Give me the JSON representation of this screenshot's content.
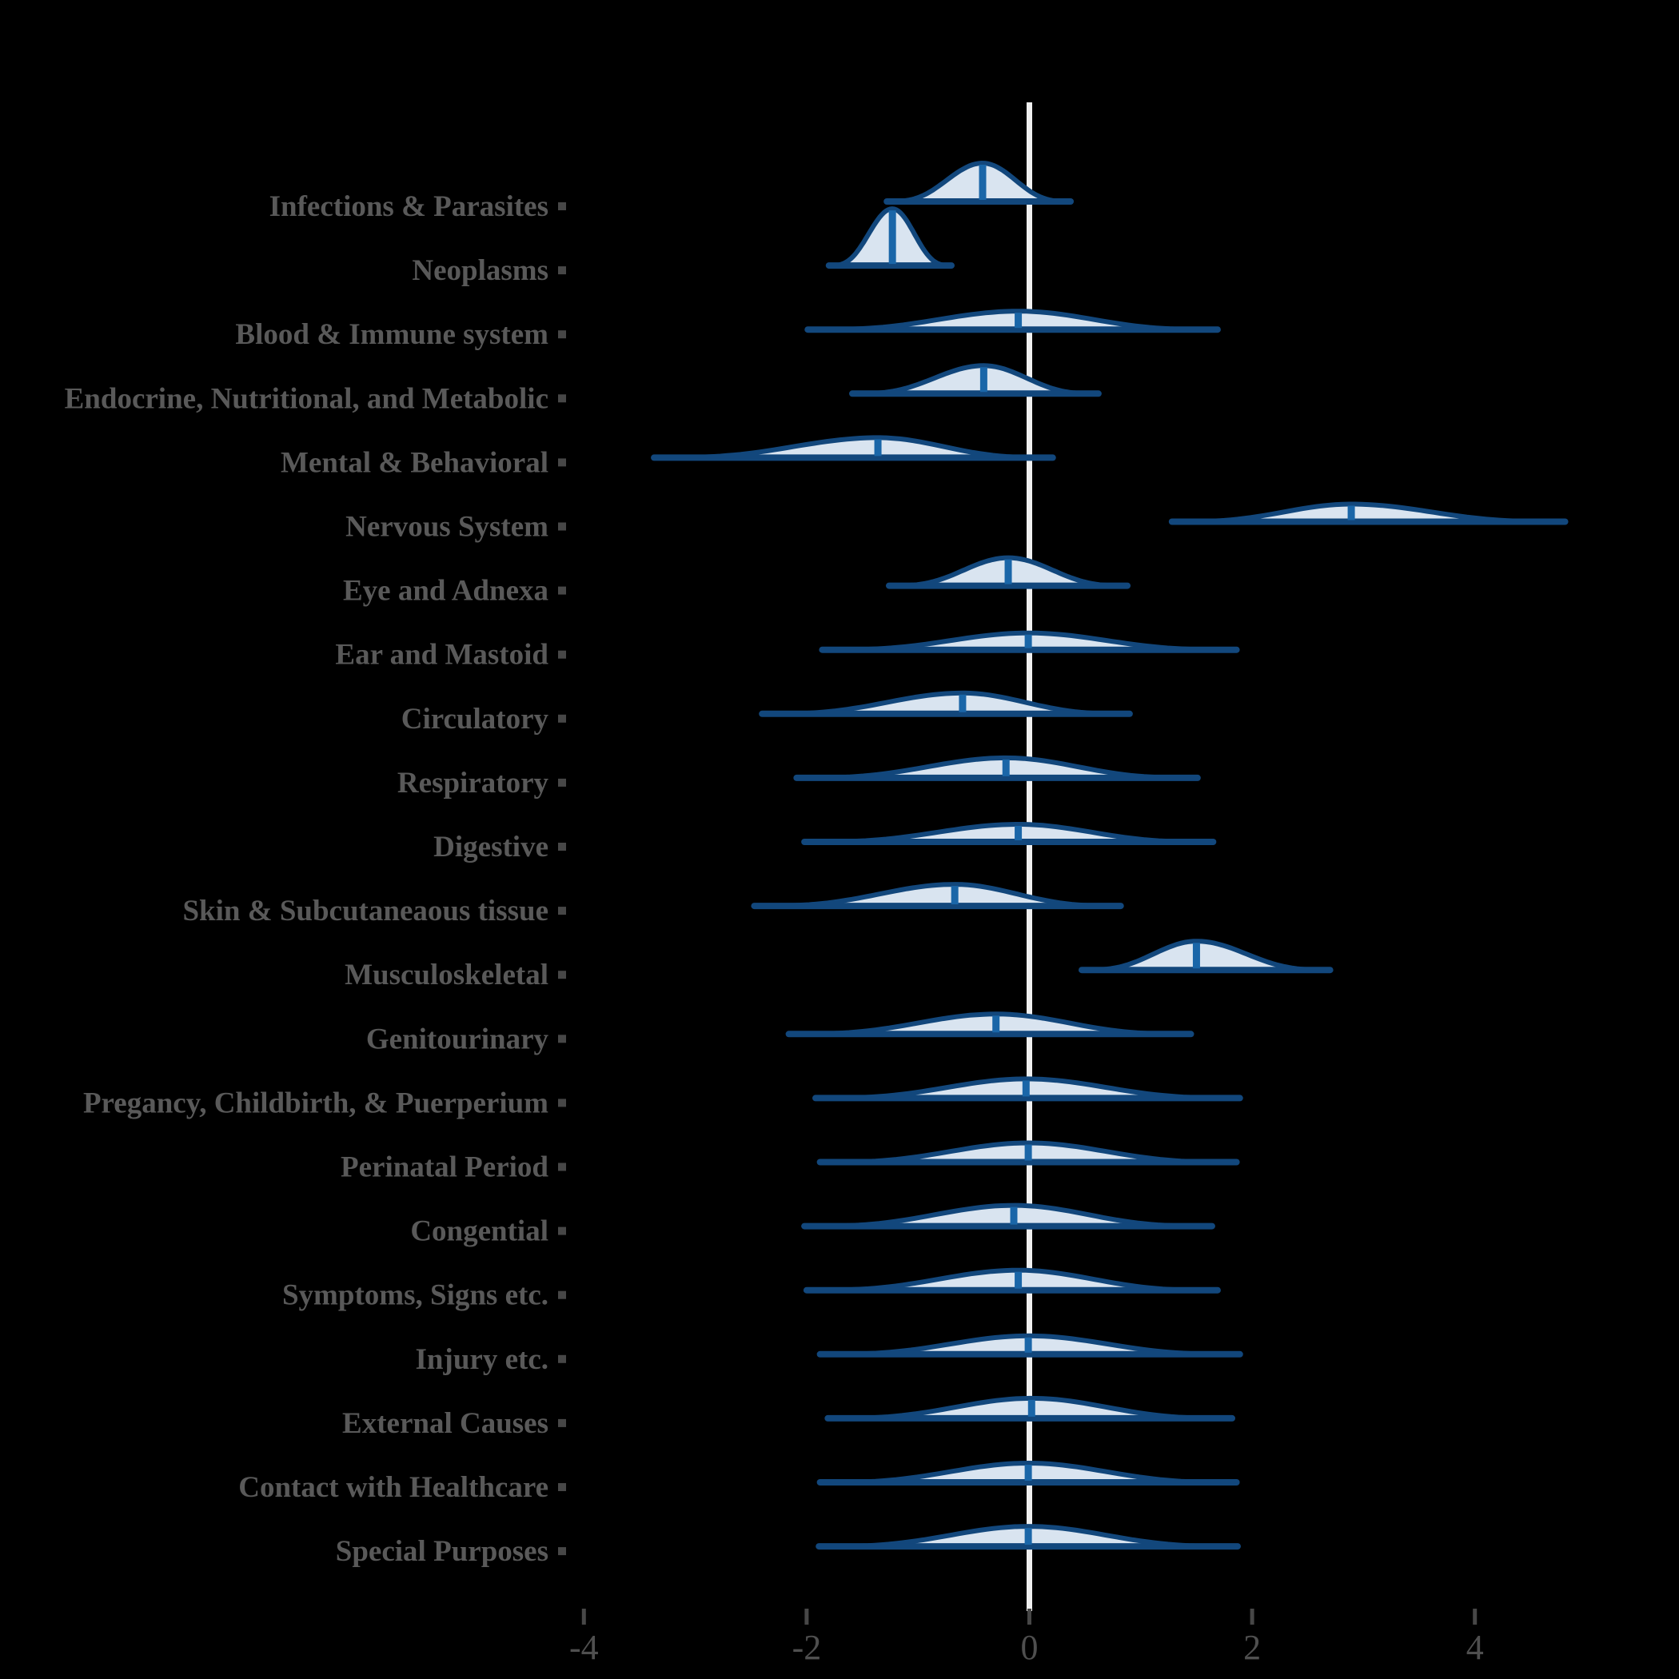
{
  "colors": {
    "background": "#000000",
    "violin_fill": "#d9e4f0",
    "violin_outline": "#12477c",
    "median_line": "#1a66a8",
    "zero_line": "#f0f0f0",
    "label_text": "#595959",
    "axis_text": "#4f4f4f",
    "tick_mark": "#474747"
  },
  "chart_data": {
    "type": "area",
    "variant": "ridgeline-density-violins",
    "title": "",
    "xlabel": "",
    "ylabel": "",
    "xlim": [
      -5,
      5
    ],
    "x_ticks": [
      -4,
      -2,
      0,
      2,
      4
    ],
    "x_tick_labels": [
      "-4",
      "-2",
      "0",
      "2",
      "4"
    ],
    "zero_reference_line": 0,
    "grid": false,
    "legend": "none",
    "categories": [
      "Infections & Parasites",
      "Neoplasms",
      "Blood & Immune system",
      "Endocrine, Nutritional, and Metabolic",
      "Mental & Behavioral",
      "Nervous System",
      "Eye and Adnexa",
      "Ear and Mastoid",
      "Circulatory",
      "Respiratory",
      "Digestive",
      "Skin & Subcutaneaous tissue",
      "Musculoskeletal",
      "Genitourinary",
      "Pregancy, Childbirth, & Puerperium",
      "Perinatal Period",
      "Congential",
      "Symptoms, Signs etc.",
      "Injury etc.",
      "External Causes",
      "Contact with Healthcare",
      "Special Purposes"
    ],
    "distributions": [
      {
        "name": "Infections & Parasites",
        "min": -1.28,
        "max": 0.37,
        "median": -0.42,
        "q_low": -0.96,
        "q_high": 0.11,
        "peak": 48
      },
      {
        "name": "Neoplasms",
        "min": -1.8,
        "max": -0.7,
        "median": -1.23,
        "q_low": -1.61,
        "q_high": -0.88,
        "peak": 71
      },
      {
        "name": "Blood & Immune system",
        "min": -1.99,
        "max": 1.69,
        "median": -0.1,
        "q_low": -1.3,
        "q_high": 1.03,
        "peak": 23
      },
      {
        "name": "Endocrine, Nutritional, and Metabolic",
        "min": -1.59,
        "max": 0.62,
        "median": -0.41,
        "q_low": -1.18,
        "q_high": 0.28,
        "peak": 35
      },
      {
        "name": "Mental & Behavioral",
        "min": -3.37,
        "max": 0.21,
        "median": -1.36,
        "q_low": -2.57,
        "q_high": -0.32,
        "peak": 25
      },
      {
        "name": "Nervous System",
        "min": 1.28,
        "max": 4.81,
        "median": 2.89,
        "q_low": 1.82,
        "q_high": 4.1,
        "peak": 22
      },
      {
        "name": "Eye and Adnexa",
        "min": -1.26,
        "max": 0.88,
        "median": -0.19,
        "q_low": -0.83,
        "q_high": 0.51,
        "peak": 35
      },
      {
        "name": "Ear and Mastoid",
        "min": -1.86,
        "max": 1.86,
        "median": -0.01,
        "q_low": -1.18,
        "q_high": 1.16,
        "peak": 21
      },
      {
        "name": "Circulatory",
        "min": -2.4,
        "max": 0.9,
        "median": -0.6,
        "q_low": -1.72,
        "q_high": 0.38,
        "peak": 26
      },
      {
        "name": "Respiratory",
        "min": -2.09,
        "max": 1.51,
        "median": -0.21,
        "q_low": -1.37,
        "q_high": 0.93,
        "peak": 25
      },
      {
        "name": "Digestive",
        "min": -2.02,
        "max": 1.65,
        "median": -0.1,
        "q_low": -1.33,
        "q_high": 1.03,
        "peak": 22
      },
      {
        "name": "Skin & Subcutaneaous tissue",
        "min": -2.47,
        "max": 0.82,
        "median": -0.67,
        "q_low": -1.74,
        "q_high": 0.32,
        "peak": 27
      },
      {
        "name": "Musculoskeletal",
        "min": 0.47,
        "max": 2.7,
        "median": 1.5,
        "q_low": 0.82,
        "q_high": 2.26,
        "peak": 36
      },
      {
        "name": "Genitourinary",
        "min": -2.16,
        "max": 1.45,
        "median": -0.3,
        "q_low": -1.43,
        "q_high": 0.83,
        "peak": 25
      },
      {
        "name": "Pregancy, Childbirth, & Puerperium",
        "min": -1.92,
        "max": 1.89,
        "median": -0.03,
        "q_low": -1.2,
        "q_high": 1.17,
        "peak": 24
      },
      {
        "name": "Perinatal Period",
        "min": -1.88,
        "max": 1.86,
        "median": -0.01,
        "q_low": -1.16,
        "q_high": 1.1,
        "peak": 24
      },
      {
        "name": "Congential",
        "min": -2.02,
        "max": 1.64,
        "median": -0.14,
        "q_low": -1.31,
        "q_high": 1.02,
        "peak": 26
      },
      {
        "name": "Symptoms, Signs etc.",
        "min": -2.0,
        "max": 1.69,
        "median": -0.1,
        "q_low": -1.3,
        "q_high": 0.93,
        "peak": 25
      },
      {
        "name": "Injury etc.",
        "min": -1.88,
        "max": 1.89,
        "median": -0.01,
        "q_low": -1.16,
        "q_high": 1.17,
        "peak": 23
      },
      {
        "name": "External Causes",
        "min": -1.81,
        "max": 1.82,
        "median": 0.02,
        "q_low": -1.13,
        "q_high": 1.07,
        "peak": 25
      },
      {
        "name": "Contact with Healthcare",
        "min": -1.88,
        "max": 1.86,
        "median": -0.01,
        "q_low": -1.16,
        "q_high": 1.14,
        "peak": 24
      },
      {
        "name": "Special Purposes",
        "min": -1.89,
        "max": 1.87,
        "median": -0.01,
        "q_low": -1.18,
        "q_high": 1.16,
        "peak": 25
      }
    ]
  }
}
